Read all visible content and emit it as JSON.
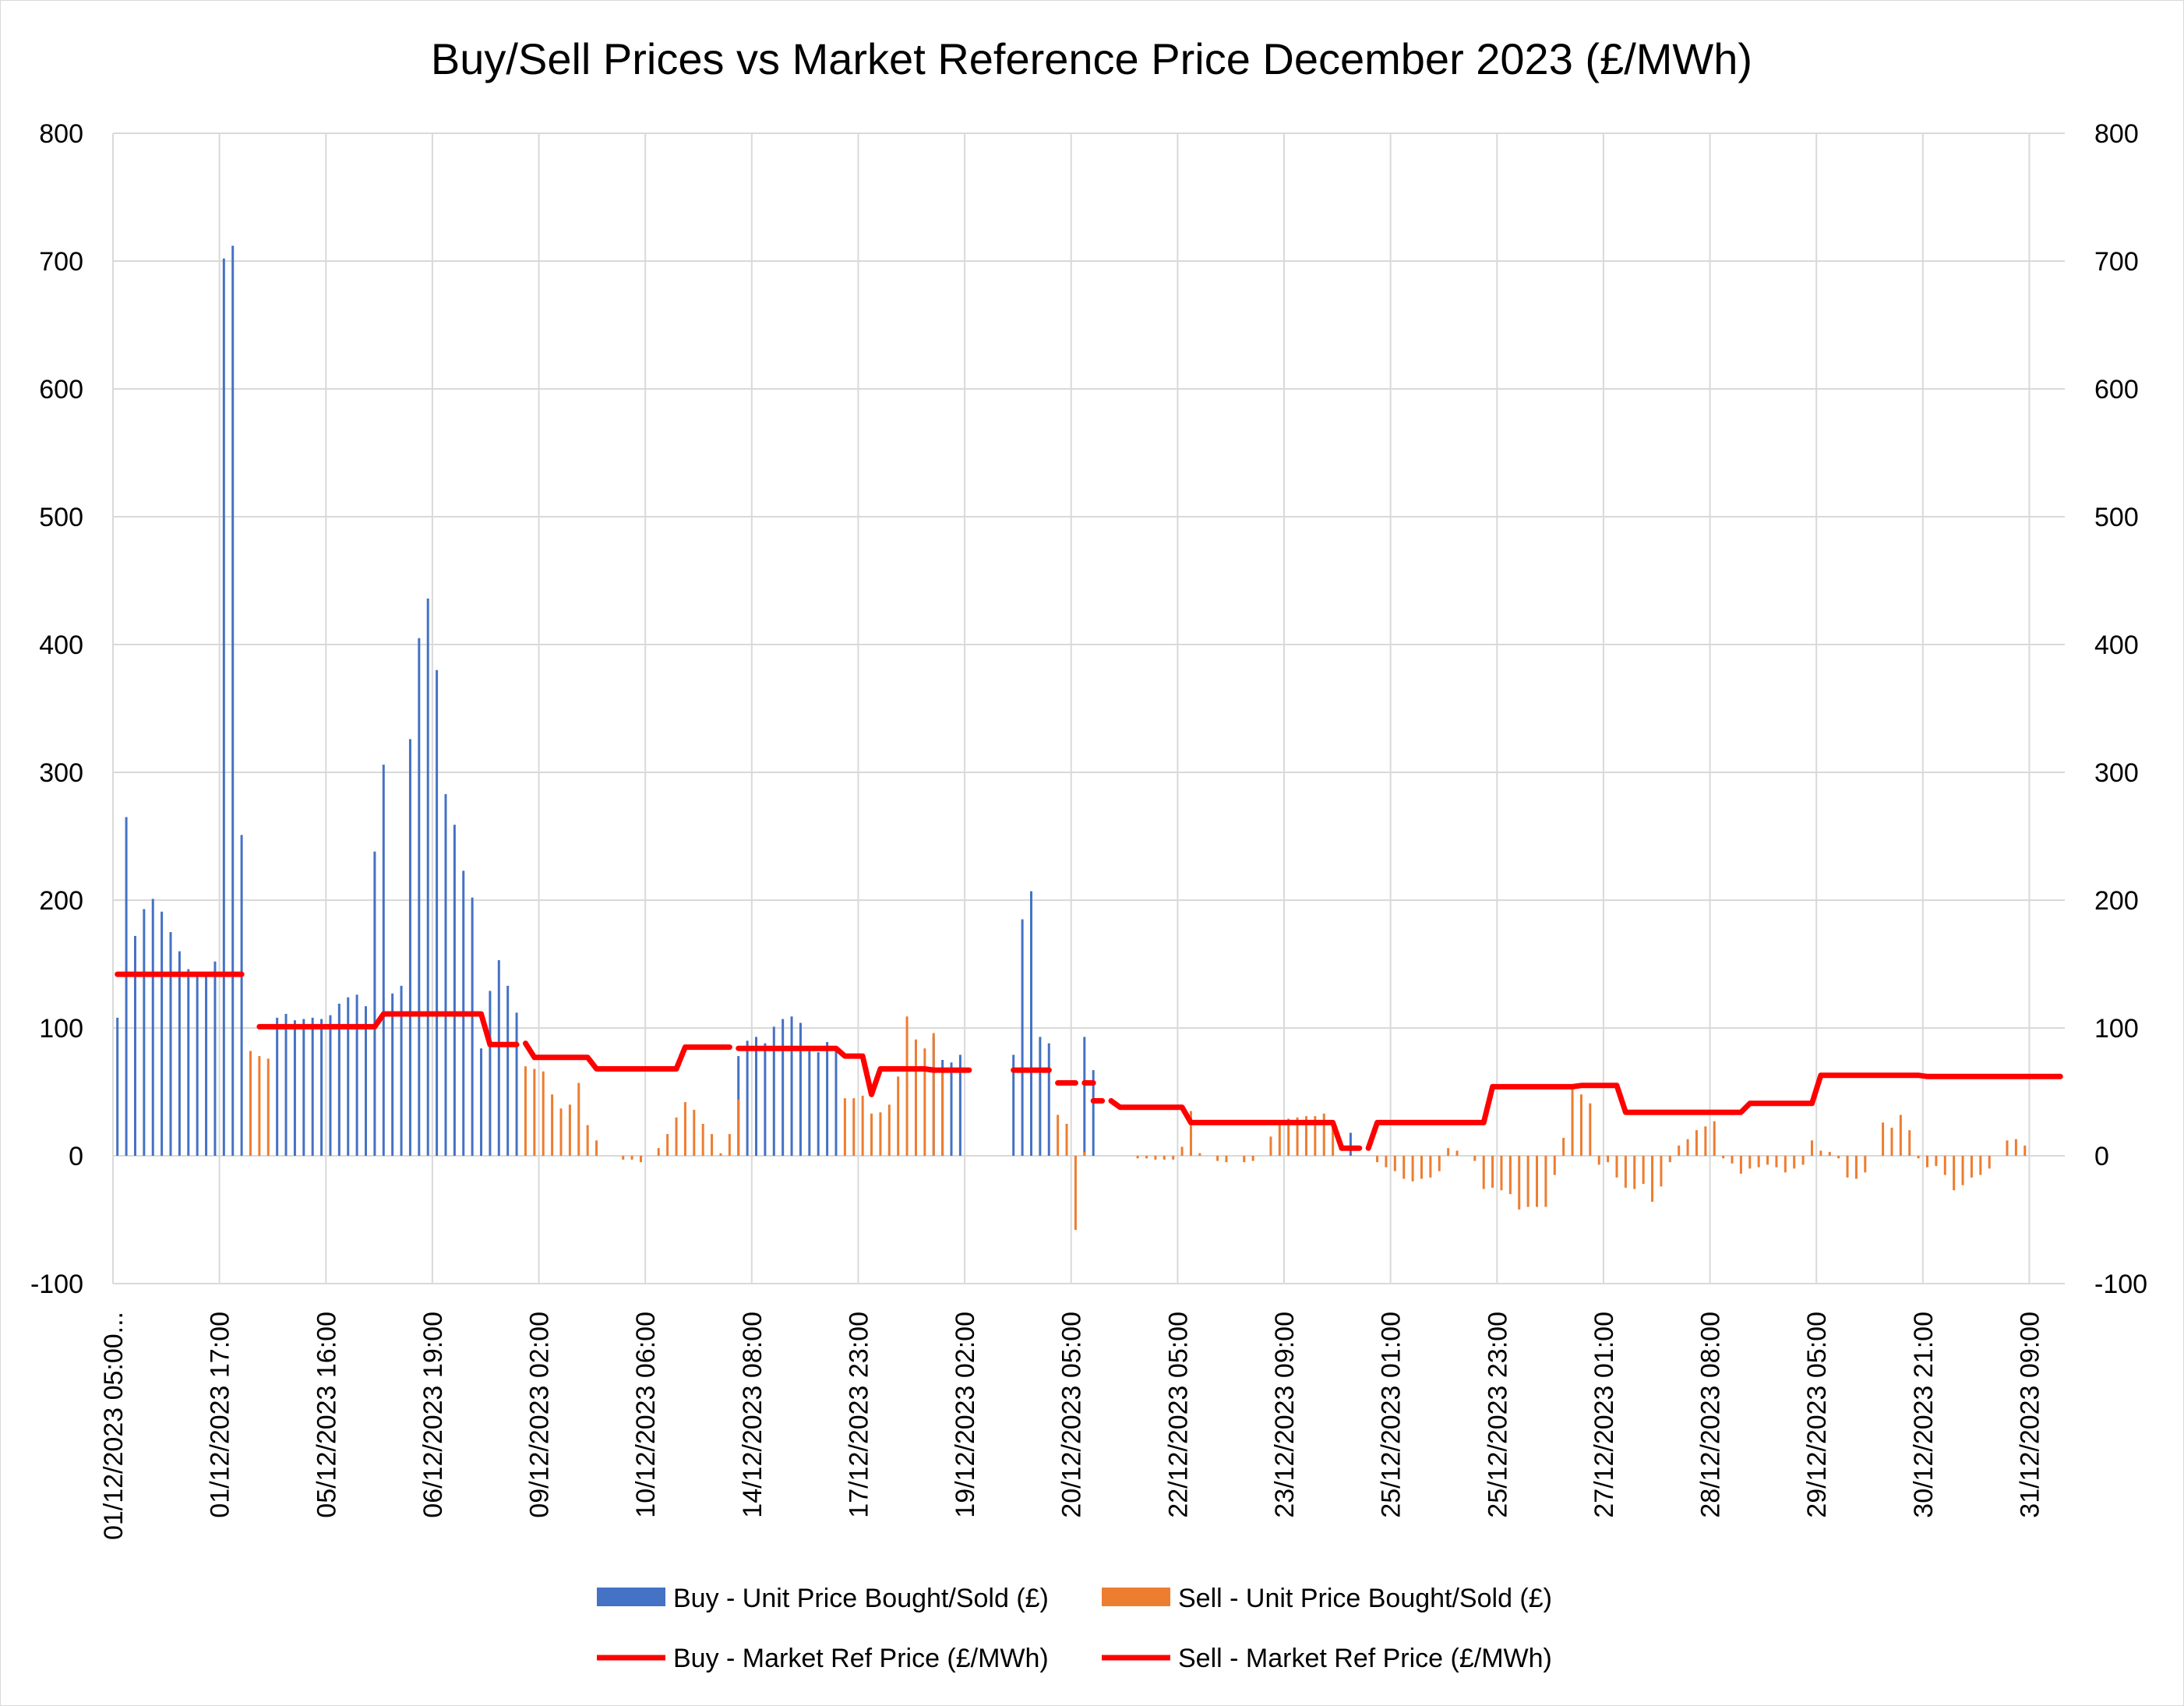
{
  "chart_data": {
    "type": "bar",
    "title": "Buy/Sell Prices vs Market Reference Price December 2023 (£/MWh)",
    "xlabel": "",
    "ylabel": "",
    "ylim": [
      -100,
      800
    ],
    "y_ticks": [
      -100,
      0,
      100,
      200,
      300,
      400,
      500,
      600,
      700,
      800
    ],
    "y2_ticks": [
      -100,
      0,
      100,
      200,
      300,
      400,
      500,
      600,
      700,
      800
    ],
    "category_labels": [
      "01/12/2023 05:00...",
      "01/12/2023 17:00",
      "05/12/2023 16:00",
      "06/12/2023 19:00",
      "09/12/2023 02:00",
      "10/12/2023 06:00",
      "14/12/2023 08:00",
      "17/12/2023 23:00",
      "19/12/2023 02:00",
      "20/12/2023 05:00",
      "22/12/2023 05:00",
      "23/12/2023 09:00",
      "25/12/2023 01:00",
      "25/12/2023 23:00",
      "27/12/2023 01:00",
      "28/12/2023 08:00",
      "29/12/2023 05:00",
      "30/12/2023 21:00",
      "31/12/2023 09:00"
    ],
    "num_periods": 220,
    "label_interval": 12,
    "grid": true,
    "legend_position": "bottom",
    "colors": {
      "buy_bar": "#4472C4",
      "sell_bar": "#ED7D31",
      "ref_line": "#FF0000",
      "grid": "#D9D9D9"
    },
    "series": [
      {
        "name": "Buy - Unit Price Bought/Sold (£)",
        "kind": "bar",
        "points": [
          [
            0,
            108
          ],
          [
            1,
            265
          ],
          [
            2,
            172
          ],
          [
            3,
            193
          ],
          [
            4,
            201
          ],
          [
            5,
            191
          ],
          [
            6,
            175
          ],
          [
            7,
            160
          ],
          [
            8,
            146
          ],
          [
            9,
            144
          ],
          [
            10,
            143
          ],
          [
            11,
            152
          ],
          [
            12,
            702
          ],
          [
            13,
            712
          ],
          [
            14,
            251
          ],
          [
            18,
            108
          ],
          [
            19,
            111
          ],
          [
            20,
            106
          ],
          [
            21,
            107
          ],
          [
            22,
            108
          ],
          [
            23,
            107
          ],
          [
            24,
            110
          ],
          [
            25,
            119
          ],
          [
            26,
            124
          ],
          [
            27,
            126
          ],
          [
            28,
            117
          ],
          [
            29,
            238
          ],
          [
            30,
            306
          ],
          [
            31,
            127
          ],
          [
            32,
            133
          ],
          [
            33,
            326
          ],
          [
            34,
            405
          ],
          [
            35,
            436
          ],
          [
            36,
            380
          ],
          [
            37,
            283
          ],
          [
            38,
            259
          ],
          [
            39,
            223
          ],
          [
            40,
            202
          ],
          [
            41,
            84
          ],
          [
            42,
            129
          ],
          [
            43,
            153
          ],
          [
            44,
            133
          ],
          [
            45,
            112
          ],
          [
            70,
            78
          ],
          [
            71,
            90
          ],
          [
            72,
            93
          ],
          [
            73,
            88
          ],
          [
            74,
            101
          ],
          [
            75,
            107
          ],
          [
            76,
            109
          ],
          [
            77,
            104
          ],
          [
            78,
            86
          ],
          [
            79,
            81
          ],
          [
            80,
            89
          ],
          [
            81,
            84
          ],
          [
            92,
            93
          ],
          [
            93,
            75
          ],
          [
            94,
            73
          ],
          [
            95,
            79
          ],
          [
            101,
            79
          ],
          [
            102,
            185
          ],
          [
            103,
            207
          ],
          [
            104,
            93
          ],
          [
            105,
            88
          ],
          [
            109,
            93
          ],
          [
            110,
            67
          ],
          [
            139,
            18
          ]
        ]
      },
      {
        "name": "Sell - Unit Price Bought/Sold (£)",
        "kind": "bar",
        "points": [
          [
            15,
            82
          ],
          [
            16,
            78
          ],
          [
            17,
            76
          ],
          [
            46,
            70
          ],
          [
            47,
            68
          ],
          [
            48,
            66
          ],
          [
            49,
            48
          ],
          [
            50,
            37
          ],
          [
            51,
            40
          ],
          [
            52,
            57
          ],
          [
            53,
            24
          ],
          [
            54,
            12
          ],
          [
            57,
            -3
          ],
          [
            58,
            -3
          ],
          [
            59,
            -5
          ],
          [
            61,
            6
          ],
          [
            62,
            17
          ],
          [
            63,
            30
          ],
          [
            64,
            42
          ],
          [
            65,
            36
          ],
          [
            66,
            25
          ],
          [
            67,
            17
          ],
          [
            68,
            2
          ],
          [
            69,
            17
          ],
          [
            70,
            44
          ],
          [
            82,
            45
          ],
          [
            83,
            45
          ],
          [
            84,
            47
          ],
          [
            85,
            33
          ],
          [
            86,
            34
          ],
          [
            87,
            40
          ],
          [
            88,
            62
          ],
          [
            89,
            109
          ],
          [
            90,
            91
          ],
          [
            91,
            84
          ],
          [
            92,
            96
          ],
          [
            93,
            67
          ],
          [
            106,
            32
          ],
          [
            107,
            25
          ],
          [
            108,
            -58
          ],
          [
            109,
            3
          ],
          [
            115,
            -2
          ],
          [
            116,
            -2
          ],
          [
            117,
            -3
          ],
          [
            118,
            -3
          ],
          [
            119,
            -3
          ],
          [
            120,
            7
          ],
          [
            121,
            35
          ],
          [
            122,
            2
          ],
          [
            124,
            -4
          ],
          [
            125,
            -5
          ],
          [
            127,
            -5
          ],
          [
            128,
            -4
          ],
          [
            130,
            15
          ],
          [
            131,
            28
          ],
          [
            132,
            29
          ],
          [
            133,
            30
          ],
          [
            134,
            31
          ],
          [
            135,
            31
          ],
          [
            136,
            33
          ],
          [
            137,
            27
          ],
          [
            142,
            -5
          ],
          [
            143,
            -9
          ],
          [
            144,
            -12
          ],
          [
            145,
            -18
          ],
          [
            146,
            -20
          ],
          [
            147,
            -18
          ],
          [
            148,
            -17
          ],
          [
            149,
            -12
          ],
          [
            150,
            6
          ],
          [
            151,
            4
          ],
          [
            153,
            -4
          ],
          [
            154,
            -26
          ],
          [
            155,
            -25
          ],
          [
            156,
            -27
          ],
          [
            157,
            -30
          ],
          [
            158,
            -42
          ],
          [
            159,
            -40
          ],
          [
            160,
            -40
          ],
          [
            161,
            -40
          ],
          [
            162,
            -15
          ],
          [
            163,
            14
          ],
          [
            164,
            56
          ],
          [
            165,
            48
          ],
          [
            166,
            41
          ],
          [
            167,
            -7
          ],
          [
            168,
            -5
          ],
          [
            169,
            -17
          ],
          [
            170,
            -25
          ],
          [
            171,
            -26
          ],
          [
            172,
            -22
          ],
          [
            173,
            -36
          ],
          [
            174,
            -24
          ],
          [
            175,
            -5
          ],
          [
            176,
            8
          ],
          [
            177,
            13
          ],
          [
            178,
            20
          ],
          [
            179,
            23
          ],
          [
            180,
            27
          ],
          [
            181,
            -2
          ],
          [
            182,
            -6
          ],
          [
            183,
            -14
          ],
          [
            184,
            -10
          ],
          [
            185,
            -9
          ],
          [
            186,
            -7
          ],
          [
            187,
            -9
          ],
          [
            188,
            -13
          ],
          [
            189,
            -10
          ],
          [
            190,
            -7
          ],
          [
            191,
            12
          ],
          [
            192,
            4
          ],
          [
            193,
            3
          ],
          [
            194,
            -2
          ],
          [
            195,
            -17
          ],
          [
            196,
            -18
          ],
          [
            197,
            -13
          ],
          [
            199,
            26
          ],
          [
            200,
            22
          ],
          [
            201,
            32
          ],
          [
            202,
            20
          ],
          [
            203,
            -2
          ],
          [
            204,
            -9
          ],
          [
            205,
            -8
          ],
          [
            206,
            -15
          ],
          [
            207,
            -27
          ],
          [
            208,
            -23
          ],
          [
            209,
            -17
          ],
          [
            210,
            -15
          ],
          [
            211,
            -10
          ],
          [
            213,
            12
          ],
          [
            214,
            13
          ],
          [
            215,
            8
          ]
        ]
      },
      {
        "name": "Buy - Market Ref Price (£/MWh)",
        "kind": "line",
        "segments": [
          [
            [
              0,
              142
            ],
            [
              14,
              142
            ]
          ],
          [
            [
              16,
              101
            ],
            [
              29,
              101
            ],
            [
              30,
              111
            ],
            [
              41,
              111
            ],
            [
              42,
              87
            ],
            [
              45,
              87
            ]
          ],
          [
            [
              70,
              84
            ],
            [
              81,
              84
            ],
            [
              82,
              78
            ],
            [
              84,
              78
            ],
            [
              85,
              48
            ],
            [
              86,
              68
            ],
            [
              91,
              68
            ],
            [
              92,
              67
            ],
            [
              93,
              67
            ]
          ],
          [
            [
              101,
              67
            ],
            [
              105,
              67
            ]
          ],
          [
            [
              109,
              57
            ],
            [
              110,
              57
            ]
          ],
          [
            [
              138,
              6
            ],
            [
              140,
              6
            ]
          ]
        ]
      },
      {
        "name": "Sell - Market Ref Price (£/MWh)",
        "kind": "line",
        "segments": [
          [
            [
              46,
              88
            ],
            [
              47,
              77
            ],
            [
              53,
              77
            ],
            [
              54,
              68
            ],
            [
              63,
              68
            ],
            [
              64,
              85
            ],
            [
              69,
              85
            ]
          ],
          [
            [
              93,
              67
            ],
            [
              96,
              67
            ]
          ],
          [
            [
              106,
              57
            ],
            [
              108,
              57
            ]
          ],
          [
            [
              110,
              43
            ],
            [
              111,
              43
            ]
          ],
          [
            [
              112,
              43
            ],
            [
              113,
              38
            ],
            [
              120,
              38
            ],
            [
              121,
              26
            ],
            [
              136,
              26
            ],
            [
              137,
              26
            ],
            [
              138,
              6
            ]
          ],
          [
            [
              141,
              6
            ],
            [
              142,
              26
            ],
            [
              154,
              26
            ],
            [
              155,
              54
            ],
            [
              164,
              54
            ],
            [
              165,
              55
            ],
            [
              169,
              55
            ],
            [
              170,
              34
            ],
            [
              183,
              34
            ],
            [
              184,
              41
            ],
            [
              191,
              41
            ],
            [
              192,
              63
            ],
            [
              203,
              63
            ],
            [
              204,
              62
            ],
            [
              219,
              62
            ]
          ]
        ]
      }
    ],
    "legend": [
      "Buy - Unit Price Bought/Sold (£)",
      "Sell - Unit Price Bought/Sold (£)",
      "Buy - Market Ref Price (£/MWh)",
      "Sell - Market Ref Price (£/MWh)"
    ]
  }
}
